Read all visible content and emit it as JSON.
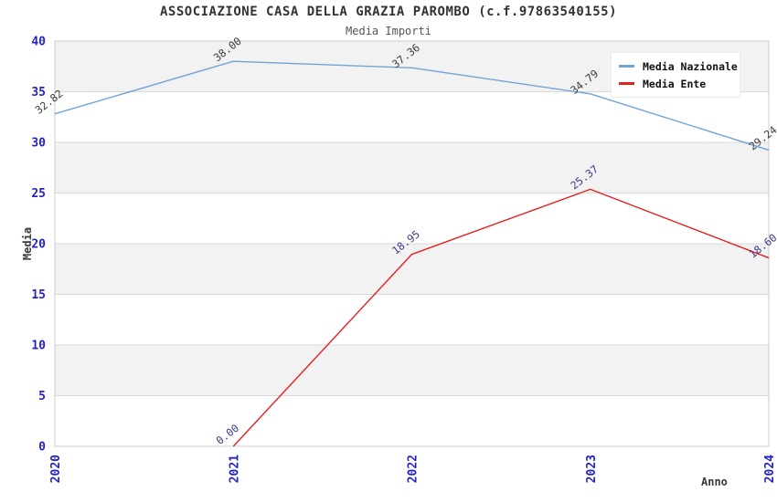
{
  "chart_data": {
    "type": "line",
    "title": "ASSOCIAZIONE CASA DELLA GRAZIA PAROMBO (c.f.97863540155)",
    "subtitle": "Media Importi",
    "xlabel": "Anno",
    "ylabel": "Media",
    "categories": [
      "2020",
      "2021",
      "2022",
      "2023",
      "2024"
    ],
    "ylim": [
      0,
      40
    ],
    "y_ticks": [
      0,
      5,
      10,
      15,
      20,
      25,
      30,
      35,
      40
    ],
    "grid": "horizontal-stripes",
    "legend_position": "top-right",
    "series": [
      {
        "name": "Media Nazionale",
        "color": "#73a3d6",
        "label_color": "#3c3c3c",
        "x": [
          "2020",
          "2021",
          "2022",
          "2023",
          "2024"
        ],
        "values": [
          32.82,
          38.0,
          37.36,
          34.79,
          29.24
        ],
        "point_labels": [
          "32.82",
          "38.00",
          "37.36",
          "34.79",
          "29.24"
        ]
      },
      {
        "name": "Media Ente",
        "color": "#e62020",
        "label_color": "#3d3d8a",
        "x": [
          "2021",
          "2022",
          "2023",
          "2024"
        ],
        "values": [
          0.0,
          18.95,
          25.37,
          18.6
        ],
        "point_labels": [
          "0.00",
          "18.95",
          "25.37",
          "18.60"
        ]
      }
    ],
    "colors": {
      "tick_label": "#2222cc",
      "stripe": "#f2f2f2",
      "grid": "#d9d9d9",
      "plot_border": "#cccccc",
      "title": "#333333",
      "subtitle": "#555555",
      "axis_title": "#3a3a3a",
      "legend_text": "#111111",
      "background": "#ffffff"
    }
  }
}
